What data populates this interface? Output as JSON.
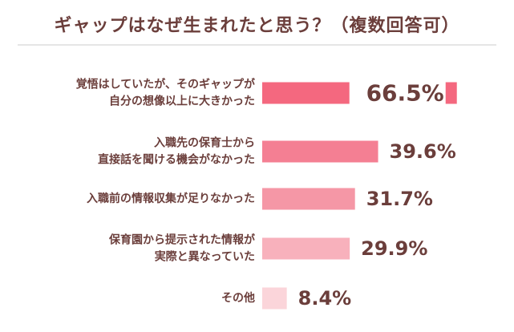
{
  "chart_data": {
    "type": "bar",
    "orientation": "horizontal",
    "title": "ギャップはなぜ生まれたと思う？（複数回答可）",
    "unit": "%",
    "xlim": [
      0,
      100
    ],
    "grid": false,
    "categories": [
      [
        "覚悟はしていたが、そのギャップが",
        "自分の想像以上に大きかった"
      ],
      [
        "入職先の保育士から",
        "直接話を聞ける機会がなかった"
      ],
      [
        "入職前の情報収集が足りなかった"
      ],
      [
        "保育園から提示された情報が",
        "実際と異なっていた"
      ],
      [
        "その他"
      ]
    ],
    "values": [
      66.5,
      39.6,
      31.7,
      29.9,
      8.4
    ],
    "value_labels": [
      "66.5%",
      "39.6%",
      "31.7%",
      "29.9%",
      "8.4%"
    ],
    "colors": [
      "#f4687f",
      "#f47f93",
      "#f597a6",
      "#f8b1bc",
      "#fbd5da"
    ]
  }
}
